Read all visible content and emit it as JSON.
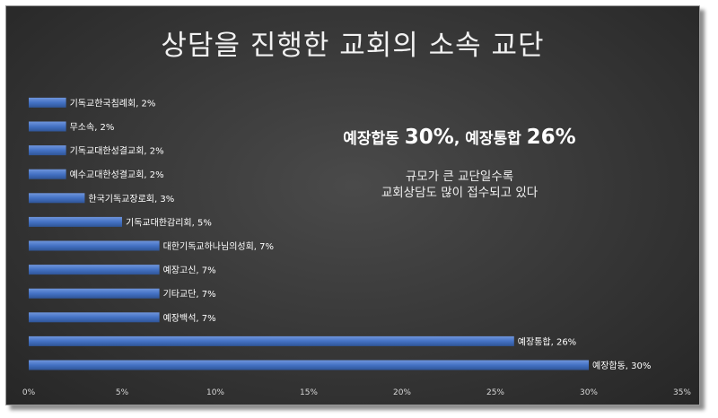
{
  "chart_data": {
    "type": "bar",
    "orientation": "horizontal",
    "title": "상담을 진행한 교회의 소속 교단",
    "categories": [
      "예장합동",
      "예장통합",
      "예장백석",
      "기타교단",
      "예장고신",
      "대한기독교하나님의성회",
      "기독교대한감리회",
      "한국기독교장로회",
      "예수교대한성결교회",
      "기독교대한성결교회",
      "무소속",
      "기독교한국침례회"
    ],
    "values": [
      30,
      26,
      7,
      7,
      7,
      7,
      5,
      3,
      2,
      2,
      2,
      2
    ],
    "data_labels": [
      "예장합동, 30%",
      "예장통합, 26%",
      "예장백석, 7%",
      "기타교단, 7%",
      "예장고신, 7%",
      "대한기독교하나님의성회, 7%",
      "기독교대한감리회, 5%",
      "한국기독교장로회, 3%",
      "예수교대한성결교회, 2%",
      "기독교대한성결교회, 2%",
      "무소속, 2%",
      "기독교한국침례회, 2%"
    ],
    "xlim": [
      0,
      35
    ],
    "xticks": [
      "0%",
      "5%",
      "10%",
      "15%",
      "20%",
      "25%",
      "30%",
      "35%"
    ],
    "bar_color": "#4472c4",
    "background": "#333333",
    "grid": false,
    "annotations": {
      "headline_a": "예장합동 ",
      "headline_a_pct": "30%",
      "headline_sep": ", 예장통합 ",
      "headline_b_pct": "26%",
      "line1": "규모가 큰 교단일수록",
      "line2": "교회상담도 많이 접수되고 있다"
    }
  }
}
